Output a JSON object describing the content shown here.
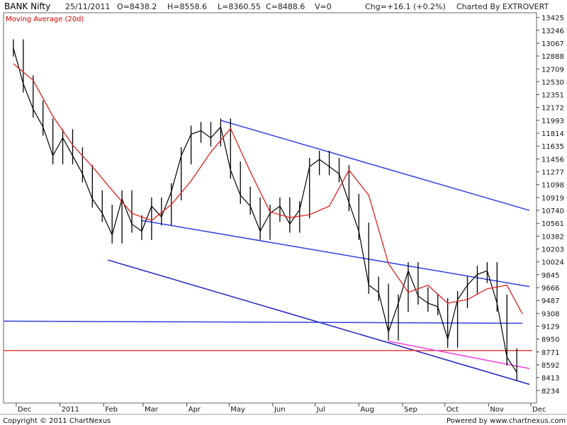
{
  "header": {
    "title": "BANK Nifty",
    "date": "25/11/2011",
    "open": "O=8438.2",
    "high": "H=8558.6",
    "low": "L=8360.55",
    "close": "C=8488.6",
    "volume": "V=0",
    "change": "Chg=+16.1 (+0.2%)",
    "charted_by": "Charted By EXTROVERT"
  },
  "ma_label": "Moving Average (20d)",
  "footer": {
    "copyright": "Copyright © 2011 ChartNexus",
    "powered": "Powered by www.chartnexus.com"
  },
  "colors": {
    "price": "#000000",
    "moving_average": "#e02020",
    "channel": "#3040e0",
    "channel_lower": "#2020c0",
    "horizontal_red": "#e04040",
    "magenta": "#f040e0",
    "grid": "#c8c8c8"
  },
  "chart_data": {
    "type": "line",
    "y_ticks": [
      "13425",
      "13246",
      "13067",
      "12888",
      "12709",
      "12530",
      "12351",
      "12172",
      "11993",
      "11814",
      "11635",
      "11456",
      "11277",
      "11098",
      "10919",
      "10740",
      "10561",
      "10382",
      "10203",
      "10024",
      "9845",
      "9666",
      "9487",
      "9308",
      "9129",
      "8950",
      "8771",
      "8592",
      "8413",
      "8234"
    ],
    "x_ticks": [
      "Dec",
      "2011",
      "Feb",
      "Mar",
      "Apr",
      "May",
      "Jun",
      "Jul",
      "Aug",
      "Sep",
      "Oct",
      "Nov",
      "Dec"
    ],
    "ylim": [
      8060,
      13490
    ],
    "grid": false,
    "series": [
      {
        "name": "BANK Nifty",
        "x": [
          "2010-11-29",
          "2010-12-06",
          "2010-12-13",
          "2010-12-20",
          "2010-12-27",
          "2011-01-03",
          "2011-01-10",
          "2011-01-17",
          "2011-01-24",
          "2011-01-31",
          "2011-02-07",
          "2011-02-14",
          "2011-02-21",
          "2011-02-28",
          "2011-03-07",
          "2011-03-14",
          "2011-03-21",
          "2011-03-28",
          "2011-04-04",
          "2011-04-11",
          "2011-04-18",
          "2011-04-25",
          "2011-05-02",
          "2011-05-09",
          "2011-05-16",
          "2011-05-23",
          "2011-05-30",
          "2011-06-06",
          "2011-06-13",
          "2011-06-20",
          "2011-06-27",
          "2011-07-04",
          "2011-07-11",
          "2011-07-18",
          "2011-07-25",
          "2011-08-01",
          "2011-08-08",
          "2011-08-15",
          "2011-08-22",
          "2011-08-29",
          "2011-09-05",
          "2011-09-12",
          "2011-09-19",
          "2011-09-26",
          "2011-10-03",
          "2011-10-10",
          "2011-10-17",
          "2011-10-24",
          "2011-10-31",
          "2011-11-07",
          "2011-11-14",
          "2011-11-21"
        ],
        "values": [
          13000,
          12500,
          12150,
          11900,
          11500,
          11750,
          11500,
          11250,
          10900,
          10700,
          10400,
          10900,
          10550,
          10450,
          10800,
          10650,
          11000,
          11500,
          11800,
          11850,
          11750,
          11900,
          11300,
          10950,
          10800,
          10450,
          10700,
          10800,
          10550,
          10750,
          11350,
          11450,
          11350,
          11250,
          10850,
          10450,
          9700,
          9600,
          9050,
          9450,
          9900,
          9550,
          9450,
          9400,
          8950,
          9500,
          9700,
          9850,
          9900,
          9450,
          8700,
          8488.6
        ]
      },
      {
        "name": "Moving Average (20d)",
        "x": [
          "2010-11-29",
          "2010-12-13",
          "2010-12-27",
          "2011-01-10",
          "2011-01-24",
          "2011-02-07",
          "2011-02-21",
          "2011-03-07",
          "2011-03-21",
          "2011-04-04",
          "2011-04-18",
          "2011-05-02",
          "2011-05-16",
          "2011-05-30",
          "2011-06-13",
          "2011-06-27",
          "2011-07-11",
          "2011-07-25",
          "2011-08-08",
          "2011-08-22",
          "2011-09-05",
          "2011-09-19",
          "2011-10-03",
          "2011-10-17",
          "2011-10-31",
          "2011-11-14",
          "2011-11-25"
        ],
        "values": [
          12780,
          12550,
          12050,
          11650,
          11350,
          11020,
          10700,
          10600,
          10820,
          11150,
          11550,
          11880,
          11280,
          10720,
          10640,
          10680,
          10800,
          11300,
          10950,
          10000,
          9600,
          9700,
          9450,
          9500,
          9650,
          9700,
          9300
        ]
      }
    ],
    "trendlines": [
      {
        "from": [
          "2011-04-25",
          11993
        ],
        "to": [
          "2011-11-30",
          10740
        ],
        "color": "#3040e0"
      },
      {
        "from": [
          "2011-02-28",
          10600
        ],
        "to": [
          "2011-11-30",
          9680
        ],
        "color": "#3040e0"
      },
      {
        "from": [
          "2011-02-04",
          10050
        ],
        "to": [
          "2011-11-30",
          8320
        ],
        "color": "#2020c0"
      },
      {
        "from": [
          "2010-11-22",
          9200
        ],
        "to": [
          "2011-11-25",
          9170
        ],
        "color": "#3040e0"
      },
      {
        "from": [
          "2010-11-22",
          8790
        ],
        "to": [
          "2011-12-02",
          8790
        ],
        "color": "#e04040"
      },
      {
        "from": [
          "2011-08-22",
          8920
        ],
        "to": [
          "2011-11-30",
          8540
        ],
        "color": "#f040e0"
      }
    ]
  }
}
